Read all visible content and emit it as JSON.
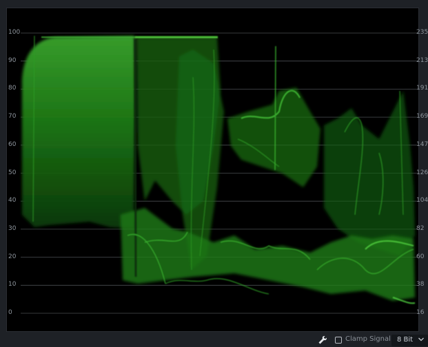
{
  "scope": {
    "left_scale": [
      "100",
      "90",
      "80",
      "70",
      "60",
      "50",
      "40",
      "30",
      "20",
      "10",
      "0"
    ],
    "right_scale": [
      "235",
      "213",
      "191",
      "169",
      "147",
      "126",
      "104",
      "82",
      "60",
      "38",
      "16"
    ],
    "trace_color": "#1f9d1f",
    "grid_color": "#4a4e52",
    "scale_color": "#8f969e"
  },
  "footer": {
    "settings_icon": "wrench-icon",
    "clamp_label": "Clamp Signal",
    "clamp_checked": false,
    "bit_depth": "8 Bit",
    "bit_chevron_icon": "chevron-down-icon"
  }
}
